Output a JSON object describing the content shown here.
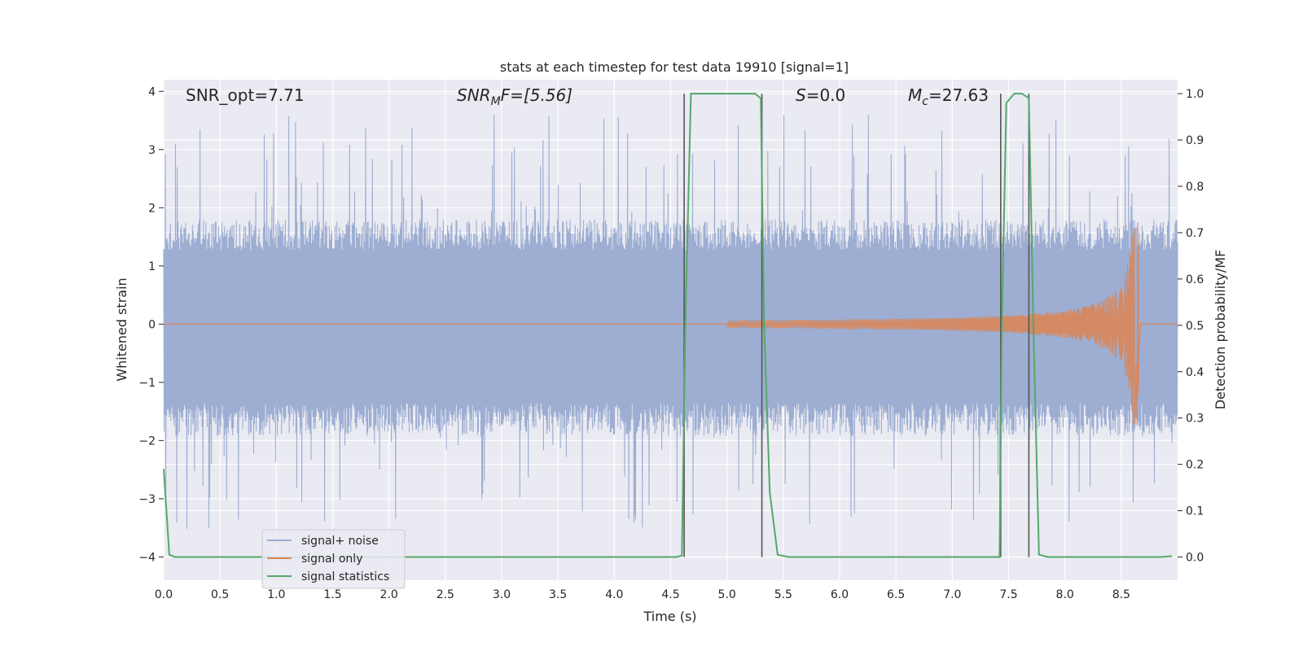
{
  "chart_data": {
    "type": "line",
    "title": "stats at each timestep for test data 19910 [signal=1]",
    "xlabel": "Time (s)",
    "ylabel_left": "Whitened strain",
    "ylabel_right": "Detection probability/MF",
    "xlim": [
      0,
      9.0
    ],
    "ylim_left": [
      -4.4,
      4.2
    ],
    "ylim_right": [
      -0.05,
      1.03
    ],
    "x_ticks": [
      "0.0",
      "0.5",
      "1.0",
      "1.5",
      "2.0",
      "2.5",
      "3.0",
      "3.5",
      "4.0",
      "4.5",
      "5.0",
      "5.5",
      "6.0",
      "6.5",
      "7.0",
      "7.5",
      "8.0",
      "8.5"
    ],
    "y_left_ticks": [
      "−4",
      "−3",
      "−2",
      "−1",
      "0",
      "1",
      "2",
      "3",
      "4"
    ],
    "y_right_ticks": [
      "0.0",
      "0.1",
      "0.2",
      "0.3",
      "0.4",
      "0.5",
      "0.6",
      "0.7",
      "0.8",
      "0.9",
      "1.0"
    ],
    "grid": true,
    "legend_position": "lower-left",
    "annotations": [
      {
        "text": "SNR_opt=7.71",
        "x": 0.2,
        "y": 3.75
      },
      {
        "text_main": "SNR",
        "text_sub": "M",
        "text_after": "F=[5.56]",
        "italic": true,
        "x": 2.6,
        "y": 3.75
      },
      {
        "text_main": "S",
        "text_after": "=0.0",
        "italic_main": true,
        "x": 5.6,
        "y": 3.75
      },
      {
        "text_main": "M",
        "text_sub": "c",
        "text_after": "=27.63",
        "italic_main": true,
        "x": 6.6,
        "y": 3.75
      }
    ],
    "series": [
      {
        "name": "signal+ noise",
        "color": "#99abd0",
        "description": "noisy whitened strain, approx. ±1.5 band with spikes up to ±3.6",
        "noise_band": [
          -1.6,
          1.5
        ],
        "noise_spike_max": 3.6
      },
      {
        "name": "signal only",
        "color": "#dd8452",
        "chirp": {
          "start": 5.0,
          "merger": 8.66,
          "peak_amplitude": 1.75
        }
      },
      {
        "name": "signal statistics",
        "color": "#55a868",
        "axis": "right",
        "x": [
          0.0,
          0.05,
          0.1,
          4.55,
          4.6,
          4.63,
          4.68,
          5.25,
          5.3,
          5.33,
          5.38,
          5.45,
          5.55,
          7.42,
          7.44,
          7.48,
          7.55,
          7.62,
          7.68,
          7.72,
          7.77,
          7.85,
          8.85,
          8.95
        ],
        "values": [
          0.19,
          0.005,
          0.0,
          0.0,
          0.003,
          0.5,
          1.0,
          1.0,
          0.99,
          0.5,
          0.14,
          0.005,
          0.0,
          0.0,
          0.5,
          0.98,
          1.0,
          1.0,
          0.99,
          0.5,
          0.005,
          0.0,
          0.0,
          0.002
        ]
      }
    ],
    "vertical_lines": [
      4.62,
      5.31,
      7.43,
      7.68
    ],
    "vertical_line_color": "#555555"
  }
}
